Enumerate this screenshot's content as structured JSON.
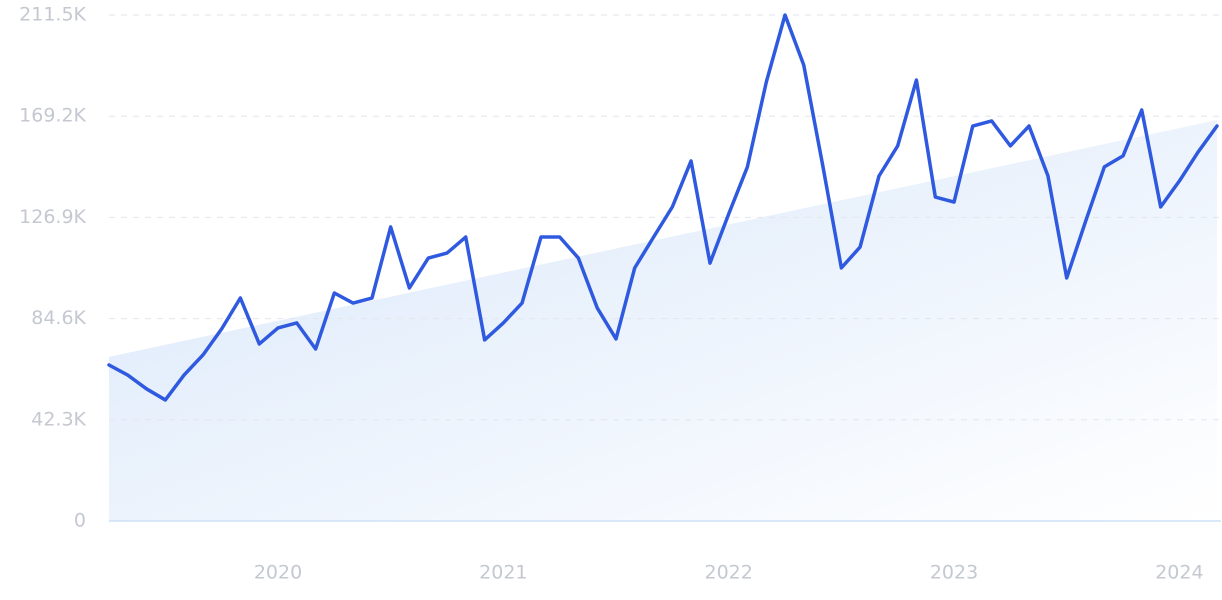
{
  "chart_data": {
    "type": "line",
    "x": [
      2019.25,
      2019.333,
      2019.417,
      2019.5,
      2019.583,
      2019.667,
      2019.75,
      2019.833,
      2019.917,
      2020,
      2020.083,
      2020.167,
      2020.25,
      2020.333,
      2020.417,
      2020.5,
      2020.583,
      2020.667,
      2020.75,
      2020.833,
      2020.917,
      2021,
      2021.083,
      2021.167,
      2021.25,
      2021.333,
      2021.417,
      2021.5,
      2021.583,
      2021.667,
      2021.75,
      2021.833,
      2021.917,
      2022,
      2022.083,
      2022.167,
      2022.25,
      2022.333,
      2022.417,
      2022.5,
      2022.583,
      2022.667,
      2022.75,
      2022.833,
      2022.917,
      2023,
      2023.083,
      2023.167,
      2023.25,
      2023.333,
      2023.417,
      2023.5,
      2023.583,
      2023.667,
      2023.75,
      2023.833,
      2023.917,
      2024,
      2024.083,
      2024.167
    ],
    "series": [
      {
        "color": "#2f5ae0",
        "values": [
          65.2,
          61.0,
          55.2,
          50.6,
          61.0,
          69.4,
          80.3,
          93.2,
          74.0,
          80.7,
          82.8,
          71.9,
          95.3,
          91.1,
          93.2,
          122.9,
          97.4,
          109.9,
          112.0,
          118.7,
          75.7,
          82.8,
          91.1,
          118.7,
          118.7,
          109.9,
          89.0,
          76.1,
          105.8,
          118.7,
          131.3,
          150.5,
          107.8,
          128.3,
          148.0,
          183.5,
          211.5,
          190.6,
          148.8,
          105.8,
          114.5,
          144.2,
          156.8,
          184.3,
          135.4,
          133.3,
          165.1,
          167.2,
          156.8,
          165.1,
          144.2,
          101.6,
          125.0,
          148.0,
          152.6,
          171.8,
          131.3,
          142.1,
          154.2,
          165.1
        ]
      }
    ],
    "trend": {
      "color": "#dbe8fb",
      "x": [
        2019.25,
        2024.167
      ],
      "values": [
        68.6,
        167.6
      ]
    },
    "xlim": [
      2019.25,
      2024.167
    ],
    "xticks": [
      2020,
      2021,
      2022,
      2023,
      2024
    ],
    "ylim": [
      0,
      211.5
    ],
    "yticks": [
      0,
      {
        "value": 42.3,
        "label": "42.3K"
      },
      {
        "value": 84.6,
        "label": "84.6K"
      },
      {
        "value": 126.9,
        "label": "126.9K"
      },
      {
        "value": 169.2,
        "label": "169.2K"
      },
      {
        "value": 211.5,
        "label": "211.5K"
      }
    ],
    "grid": true
  }
}
